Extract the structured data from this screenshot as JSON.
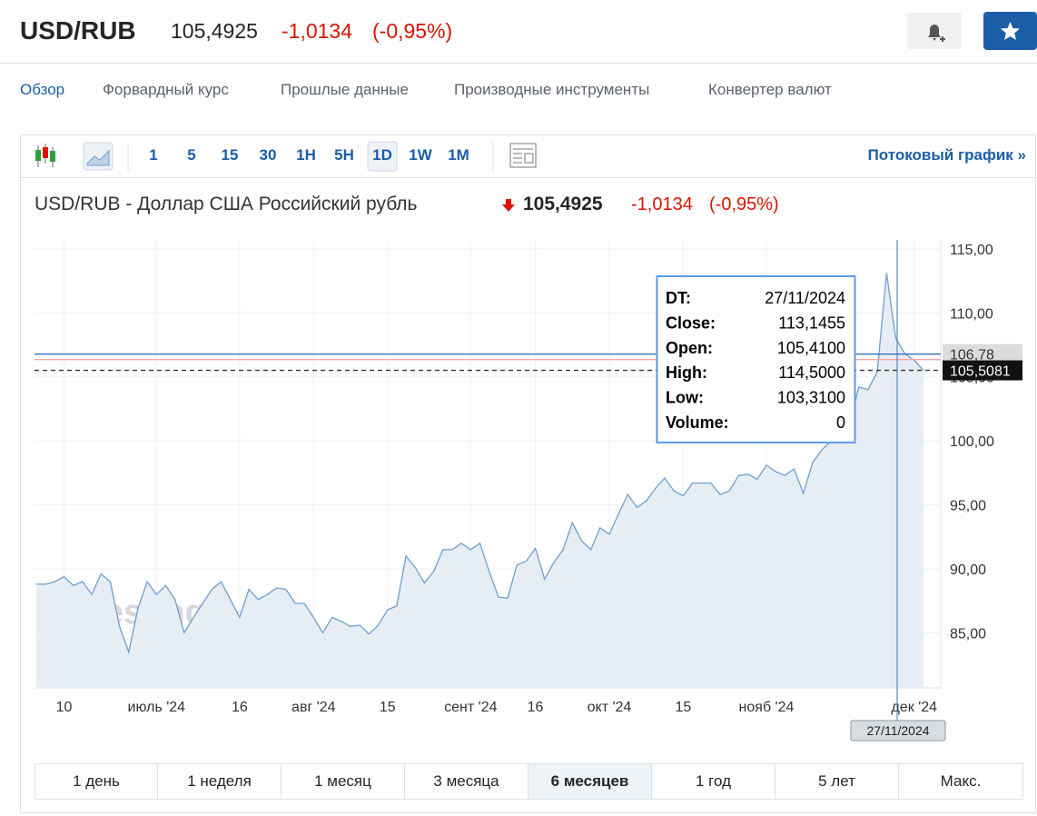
{
  "header": {
    "symbol": "USD/RUB",
    "price": "105,4925",
    "change": "-1,0134",
    "change_pct": "(-0,95%)"
  },
  "nav": [
    "Обзор",
    "Форвардный курс",
    "Прошлые данные",
    "Производные инструменты",
    "Конвертер валют"
  ],
  "toolbar": {
    "intervals": [
      "1",
      "5",
      "15",
      "30",
      "1H",
      "5H",
      "1D",
      "1W",
      "1M"
    ],
    "streaming": "Потоковый график »"
  },
  "chart_header": {
    "name": "USD/RUB - Доллар США Российский рубль",
    "price": "105,4925",
    "change": "-1,0134",
    "change_pct": "(-0,95%)"
  },
  "watermark": [
    "Investing",
    ".com"
  ],
  "tooltip": {
    "rows": [
      [
        "DT:",
        "27/11/2024"
      ],
      [
        "Close:",
        "113,1455"
      ],
      [
        "Open:",
        "105,4100"
      ],
      [
        "High:",
        "114,5000"
      ],
      [
        "Low:",
        "103,3100"
      ],
      [
        "Volume:",
        "0"
      ]
    ]
  },
  "crosshair": {
    "label": "27/11/2024"
  },
  "chart_data": {
    "type": "line",
    "color": "#6f9fcf",
    "fill": "#e6edf5",
    "grid": true,
    "categories": [
      null,
      null,
      null,
      "10",
      null,
      null,
      null,
      null,
      null,
      null,
      null,
      null,
      null,
      "июль '24",
      null,
      null,
      null,
      null,
      null,
      null,
      null,
      null,
      "16",
      null,
      null,
      null,
      null,
      null,
      null,
      null,
      "авг '24",
      null,
      null,
      null,
      null,
      null,
      null,
      null,
      "15",
      null,
      null,
      null,
      null,
      null,
      null,
      null,
      null,
      "сент '24",
      null,
      null,
      null,
      null,
      null,
      null,
      "16",
      null,
      null,
      null,
      null,
      null,
      null,
      null,
      "окт '24",
      null,
      null,
      null,
      null,
      null,
      null,
      null,
      "15",
      null,
      null,
      null,
      null,
      null,
      null,
      null,
      null,
      "нояб '24",
      null,
      null,
      null,
      null,
      null,
      null,
      null,
      null,
      null,
      null,
      null,
      null,
      null,
      null,
      null,
      "дек '24",
      null
    ],
    "values": [
      88.8,
      88.8,
      89.0,
      89.4,
      88.7,
      89.0,
      88.0,
      89.6,
      89.0,
      85.5,
      83.5,
      86.9,
      89.0,
      88.0,
      88.7,
      87.6,
      85.0,
      86.2,
      87.3,
      88.4,
      89.0,
      87.6,
      86.2,
      88.4,
      87.6,
      88.0,
      88.5,
      88.4,
      87.3,
      87.3,
      86.2,
      85.0,
      86.2,
      85.9,
      85.5,
      85.6,
      84.9,
      85.6,
      86.8,
      87.1,
      91.0,
      90.1,
      88.9,
      89.8,
      91.5,
      91.5,
      92.0,
      91.5,
      92.0,
      89.8,
      87.8,
      87.7,
      90.3,
      90.6,
      91.6,
      89.2,
      90.5,
      91.5,
      93.6,
      92.2,
      91.5,
      93.2,
      92.7,
      94.3,
      95.8,
      94.8,
      95.3,
      96.3,
      97.1,
      96.1,
      95.7,
      96.7,
      96.7,
      96.7,
      95.8,
      96.1,
      97.3,
      97.4,
      97.0,
      98.1,
      97.6,
      97.3,
      97.8,
      95.9,
      98.3,
      99.3,
      100.0,
      100.5,
      101.4,
      104.2,
      104.0,
      105.4,
      113.1,
      108.0,
      106.8,
      106.3,
      105.5
    ],
    "ylim": [
      80.7,
      115.7
    ],
    "yticks": [
      {
        "value": 85,
        "label": "85,00"
      },
      {
        "value": 90,
        "label": "90,00"
      },
      {
        "value": 95,
        "label": "95,00"
      },
      {
        "value": 100,
        "label": "100,00"
      },
      {
        "value": 105,
        "label": "105,00"
      },
      {
        "value": 110,
        "label": "110,00"
      },
      {
        "value": 115,
        "label": "115,00"
      }
    ],
    "hlines": [
      {
        "value": 106.78,
        "label": "106,78",
        "color": "#3d6fb5",
        "style": "solid"
      },
      {
        "value": 106.35,
        "color": "#f2a6a6",
        "style": "solid"
      },
      {
        "value": 105.5081,
        "label": "105,5081",
        "color": "#333333",
        "style": "dashed"
      }
    ]
  },
  "ranges": [
    "1 день",
    "1 неделя",
    "1 месяц",
    "3 месяца",
    "6 месяцев",
    "1 год",
    "5 лет",
    "Макс."
  ],
  "selected_range": "6 месяцев"
}
